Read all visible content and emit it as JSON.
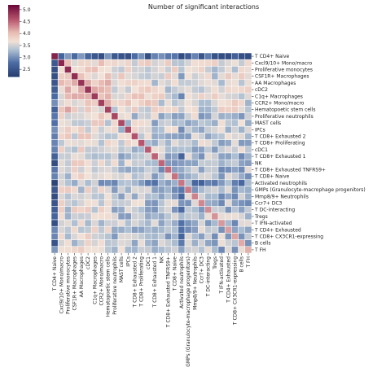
{
  "chart_data": {
    "type": "heatmap",
    "title": "Number of significant interactions",
    "labels": [
      "T CD4+ Naive",
      "Cxcl9/10+ Mono/macro",
      "Proliferative monocytes",
      "CSF1R+ Macrophages",
      "AA Macrophages",
      "cDC2",
      "C1q+ Macrophages",
      "CCR2+ Mono/macro",
      "Hematopoetic stem cells",
      "Proliferative neutrophils",
      "MAST cells",
      "IPCs",
      "T CD8+ Exhausted 2",
      "T CD8+ Proliferating",
      "cDC1",
      "T CD8+ Exhausted 1",
      "NK",
      "T CD8+ Exhausted TNFRS9+",
      "T CD8+ Naive",
      "Activated neutrophils",
      "GMPs (Granulocyte-macrophage progenitors)",
      "Mmp8/9+ Neutrophils",
      "Ccr7+ DC3",
      "T DC-interacting",
      "Tregs",
      "T IFN-activated",
      "T CD4+ Exhausted",
      "T CD8+ CX3CR1-expressing",
      "B cells",
      "T FH"
    ],
    "colorbar": {
      "ticks": [
        2.5,
        3.0,
        3.5,
        4.0,
        4.5,
        5.0
      ],
      "min": 2.2,
      "max": 5.2
    },
    "colormap": "twilight_shifted (blue - white - maroon)",
    "matrix_generation": "approximate"
  }
}
